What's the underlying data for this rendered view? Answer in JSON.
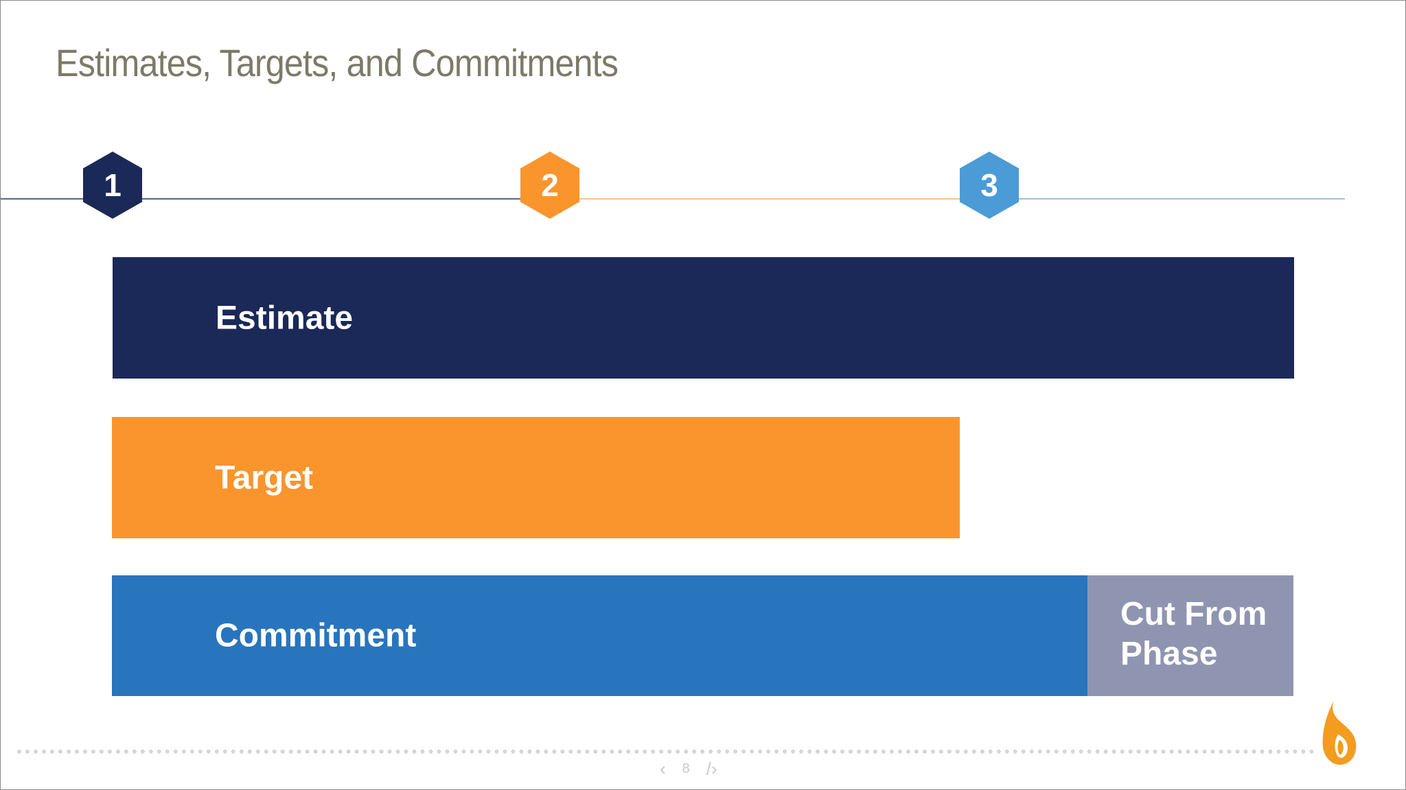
{
  "slide": {
    "title": "Estimates, Targets, and Commitments",
    "steps": [
      {
        "number": "1",
        "color": "#1b2958"
      },
      {
        "number": "2",
        "color": "#f9952c"
      },
      {
        "number": "3",
        "color": "#4b9bd6"
      }
    ],
    "bars": {
      "estimate": {
        "label": "Estimate",
        "color": "#1b2958"
      },
      "target": {
        "label": "Target",
        "color": "#f9952c"
      },
      "commitment": {
        "label": "Commitment",
        "color": "#2875be"
      },
      "cut": {
        "line1": "Cut From",
        "line2": "Phase",
        "color": "#8f95b0"
      }
    },
    "title_color": "#7c7a68",
    "logo": "flame-drop-logo",
    "logo_color": "#f39c1f"
  },
  "navigation": {
    "prev_icon": "chevron-left-icon",
    "page_number": "8",
    "next_icon": "chevron-right-icon"
  }
}
